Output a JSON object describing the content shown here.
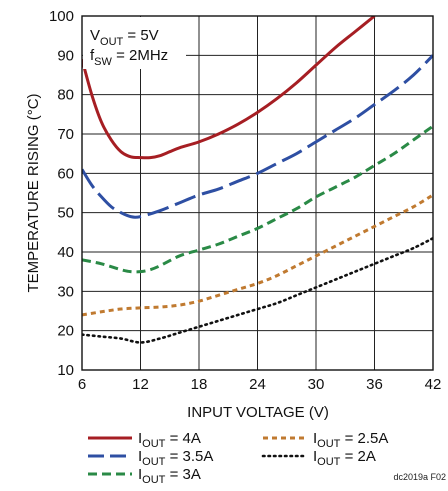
{
  "chart_data": {
    "type": "line",
    "xlabel": "INPUT VOLTAGE (V)",
    "ylabel": "TEMPERATURE RISING (°C)",
    "xlim": [
      6,
      42
    ],
    "ylim": [
      10,
      100
    ],
    "xticks": [
      6,
      12,
      18,
      24,
      30,
      36,
      42
    ],
    "yticks": [
      10,
      20,
      30,
      40,
      50,
      60,
      70,
      80,
      90,
      100
    ],
    "grid": true,
    "conditions": {
      "vout": {
        "main": "V",
        "sub": "OUT",
        "rest": " = 5V"
      },
      "fsw": {
        "main": "f",
        "sub": "SW",
        "rest": " = 2MHz"
      }
    },
    "series": [
      {
        "legend": {
          "main": "I",
          "sub": "OUT",
          "rest": " = 4A"
        },
        "color": "#a61e23",
        "style": "solid",
        "points": [
          [
            6,
            89
          ],
          [
            7,
            80
          ],
          [
            8,
            73
          ],
          [
            9,
            68.5
          ],
          [
            10,
            65.5
          ],
          [
            11,
            64.2
          ],
          [
            12,
            64
          ],
          [
            13,
            64
          ],
          [
            14,
            64.5
          ],
          [
            15,
            65.5
          ],
          [
            16,
            66.5
          ],
          [
            18,
            68
          ],
          [
            20,
            70
          ],
          [
            22,
            72.5
          ],
          [
            24,
            75.5
          ],
          [
            26,
            79
          ],
          [
            28,
            83
          ],
          [
            30,
            87.5
          ],
          [
            32,
            92
          ],
          [
            34,
            96
          ],
          [
            36,
            100
          ]
        ]
      },
      {
        "legend": {
          "main": "I",
          "sub": "OUT",
          "rest": " = 3.5A"
        },
        "color": "#2e4fa3",
        "style": "long-dash",
        "points": [
          [
            6,
            61
          ],
          [
            7,
            57
          ],
          [
            8,
            54
          ],
          [
            9,
            51.5
          ],
          [
            10,
            50
          ],
          [
            11,
            49
          ],
          [
            12,
            49
          ],
          [
            14,
            50.5
          ],
          [
            16,
            52.5
          ],
          [
            18,
            54.5
          ],
          [
            20,
            56
          ],
          [
            22,
            58
          ],
          [
            24,
            60
          ],
          [
            26,
            62.5
          ],
          [
            28,
            65
          ],
          [
            30,
            68
          ],
          [
            32,
            71
          ],
          [
            34,
            74
          ],
          [
            36,
            77.5
          ],
          [
            38,
            81
          ],
          [
            40,
            85
          ],
          [
            42,
            90
          ]
        ]
      },
      {
        "legend": {
          "main": "I",
          "sub": "OUT",
          "rest": " = 3A"
        },
        "color": "#2a8a46",
        "style": "dash",
        "points": [
          [
            6,
            38
          ],
          [
            8,
            37
          ],
          [
            10,
            35.5
          ],
          [
            11,
            35
          ],
          [
            12,
            35
          ],
          [
            13,
            35.5
          ],
          [
            14,
            36.5
          ],
          [
            16,
            39
          ],
          [
            18,
            40.5
          ],
          [
            20,
            42
          ],
          [
            22,
            44
          ],
          [
            24,
            46
          ],
          [
            26,
            48.5
          ],
          [
            28,
            51
          ],
          [
            30,
            54
          ],
          [
            32,
            56.5
          ],
          [
            34,
            59
          ],
          [
            36,
            62
          ],
          [
            38,
            65
          ],
          [
            40,
            68.5
          ],
          [
            42,
            72
          ]
        ]
      },
      {
        "legend": {
          "main": "I",
          "sub": "OUT",
          "rest": " = 2.5A"
        },
        "color": "#c07a30",
        "style": "short-dash",
        "points": [
          [
            6,
            24
          ],
          [
            8,
            24.8
          ],
          [
            10,
            25.5
          ],
          [
            12,
            25.8
          ],
          [
            14,
            26
          ],
          [
            16,
            26.5
          ],
          [
            18,
            27.5
          ],
          [
            20,
            29
          ],
          [
            22,
            30.5
          ],
          [
            24,
            32
          ],
          [
            26,
            34
          ],
          [
            28,
            36.5
          ],
          [
            30,
            39
          ],
          [
            32,
            41.5
          ],
          [
            34,
            44
          ],
          [
            36,
            46.5
          ],
          [
            38,
            49
          ],
          [
            40,
            51.5
          ],
          [
            42,
            54.5
          ]
        ]
      },
      {
        "legend": {
          "main": "I",
          "sub": "OUT",
          "rest": " = 2A"
        },
        "color": "#111111",
        "style": "dotted",
        "points": [
          [
            6,
            19
          ],
          [
            8,
            18.5
          ],
          [
            10,
            18
          ],
          [
            12,
            17
          ],
          [
            14,
            18
          ],
          [
            16,
            19.5
          ],
          [
            18,
            21
          ],
          [
            20,
            22.5
          ],
          [
            22,
            24
          ],
          [
            24,
            25.5
          ],
          [
            26,
            27
          ],
          [
            28,
            29
          ],
          [
            30,
            31
          ],
          [
            32,
            33
          ],
          [
            34,
            35
          ],
          [
            36,
            37
          ],
          [
            38,
            39
          ],
          [
            40,
            41
          ],
          [
            42,
            43.5
          ]
        ]
      }
    ],
    "figure_id": "dc2019a F02"
  }
}
